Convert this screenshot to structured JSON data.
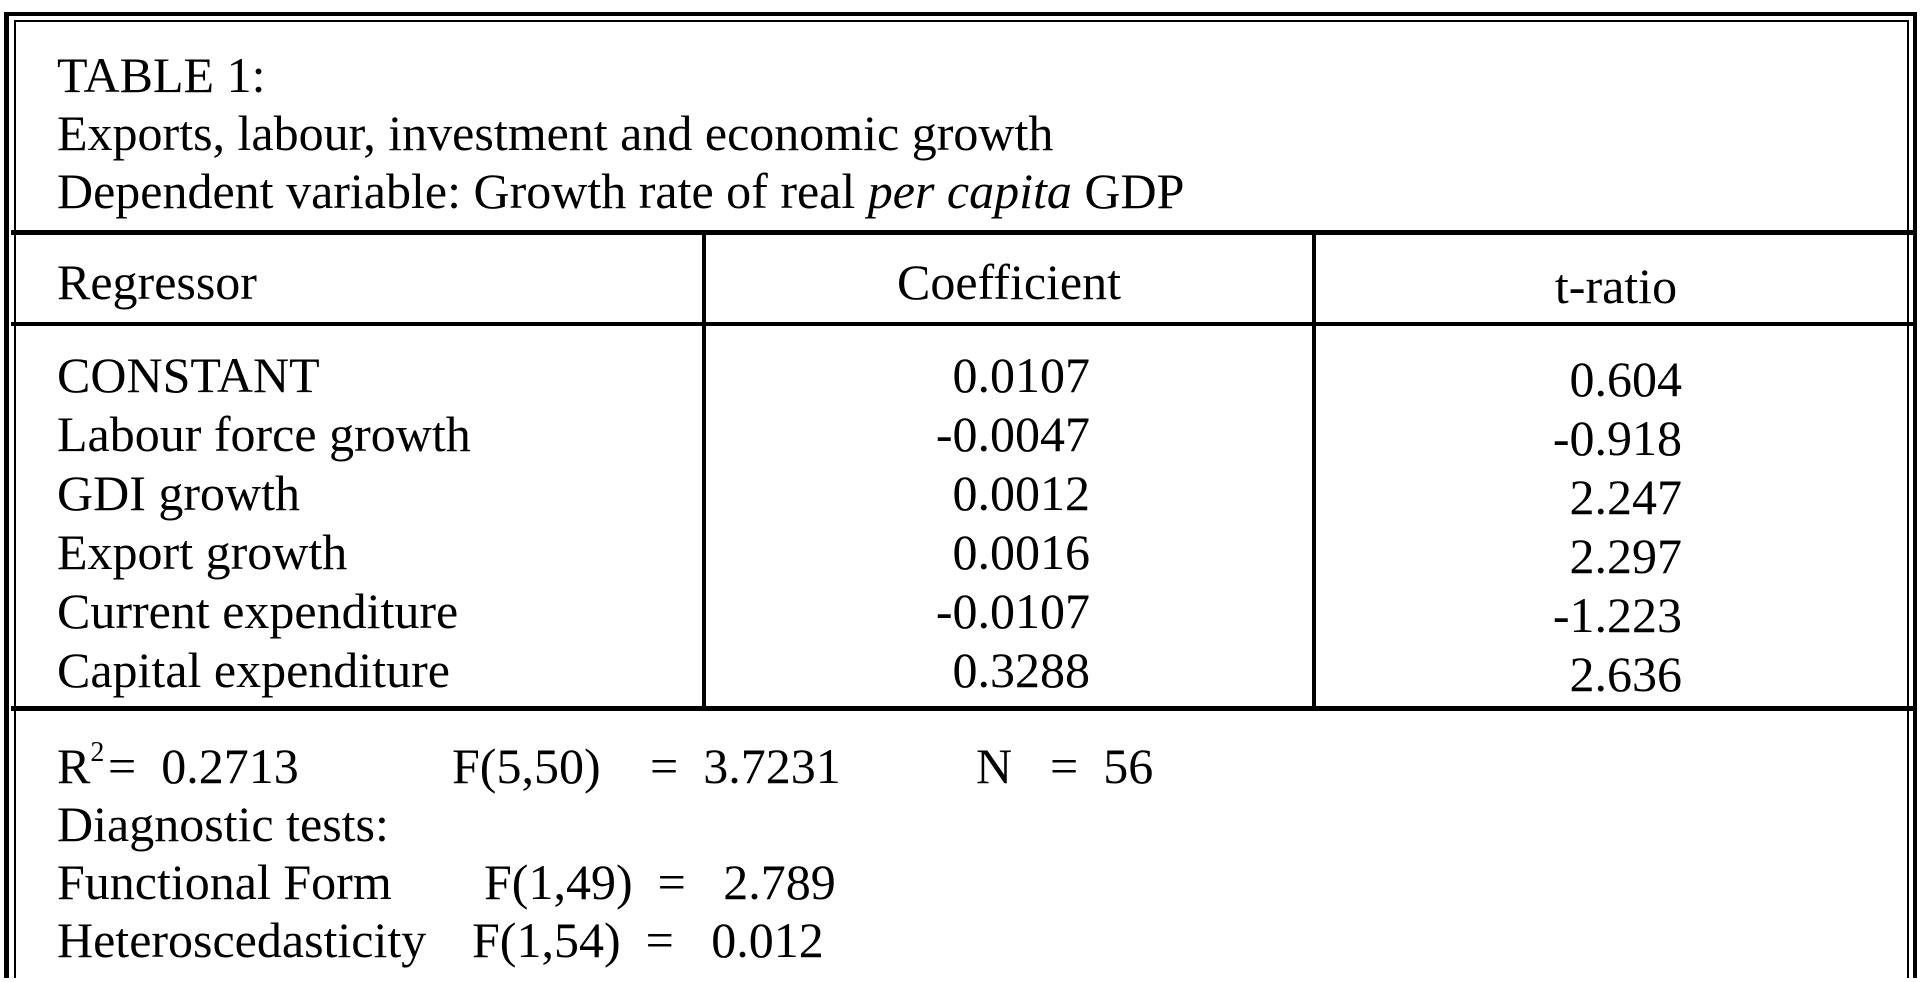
{
  "title": {
    "line1": "TABLE 1:",
    "line2": "Exports, labour, investment and economic growth",
    "line3_prefix": "Dependent variable:  Growth rate of real ",
    "line3_italic": "per capita",
    "line3_suffix": " GDP"
  },
  "columns": {
    "regressor": "Regressor",
    "coefficient": "Coefficient",
    "t_ratio": "t-ratio"
  },
  "rows": [
    {
      "regressor": "CONSTANT",
      "coefficient": "0.0107",
      "t_ratio": "0.604"
    },
    {
      "regressor": "Labour force growth",
      "coefficient": "-0.0047",
      "t_ratio": "-0.918"
    },
    {
      "regressor": "GDI growth",
      "coefficient": "0.0012",
      "t_ratio": "2.247"
    },
    {
      "regressor": "Export growth",
      "coefficient": "0.0016",
      "t_ratio": "2.297"
    },
    {
      "regressor": "Current expenditure",
      "coefficient": "-0.0107",
      "t_ratio": "-1.223"
    },
    {
      "regressor": "Capital expenditure",
      "coefficient": "0.3288",
      "t_ratio": "2.636"
    }
  ],
  "stats": {
    "r2_label": "R",
    "r2_sup": "2",
    "r2_value": "=  0.2713",
    "f_label": "F(5,50)",
    "f_value": "=  3.7231",
    "n_label": "N",
    "n_value": "=  56"
  },
  "diagnostics": {
    "heading": "Diagnostic tests:",
    "functional_form_label": "Functional Form",
    "functional_form_stat": "F(1,49)  =   2.789",
    "heteroscedasticity_label": "Heteroscedasticity",
    "heteroscedasticity_stat": "F(1,54)  =   0.012"
  }
}
